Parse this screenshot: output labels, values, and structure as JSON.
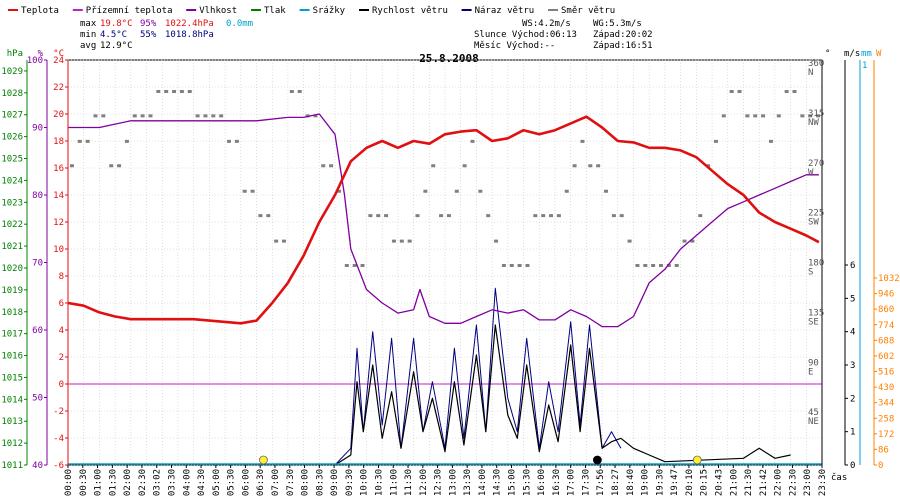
{
  "legend": [
    {
      "label": "Teplota",
      "color": "#e01010"
    },
    {
      "label": "Přízemní teplota",
      "color": "#c020c0"
    },
    {
      "label": "Vlhkost",
      "color": "#8000a0"
    },
    {
      "label": "Tlak",
      "color": "#008000"
    },
    {
      "label": "Srážky",
      "color": "#00a0d0"
    },
    {
      "label": "Rychlost větru",
      "color": "#000000"
    },
    {
      "label": "Náraz větru",
      "color": "#000080"
    },
    {
      "label": "Směr větru",
      "color": "#808080"
    }
  ],
  "stats": {
    "max_label": "max",
    "max_temp": "19.8°C",
    "max_hum": "95%",
    "max_press": "1022.4hPa",
    "max_rain": "0.0mm",
    "min_label": "min",
    "min_temp": "4.5°C",
    "min_hum": "55%",
    "min_press": "1018.8hPa",
    "avg_label": "avg",
    "avg_temp": "12.9°C"
  },
  "wind_info": {
    "ws": "WS:4.2m/s",
    "wg": "WG:5.3m/s"
  },
  "sun_info": {
    "sun": "Slunce Východ:06:13",
    "sun_set": "Západ:20:02",
    "moon": "Měsíc  Východ:--",
    "moon_set": "Západ:16:51"
  },
  "date": "25.8.2008",
  "time_axis_label": "čas",
  "colors": {
    "temp": "#e01010",
    "humidity": "#8000a0",
    "pressure": "#008000",
    "rain": "#00a0d0",
    "wind": "#000000",
    "gust": "#000080",
    "winddir": "#808080",
    "solar": "#ff8000",
    "zero": "#c020c0"
  },
  "chart_data": {
    "type": "line",
    "title": "25.8.2008",
    "xlabel": "čas",
    "x_tick_labels": [
      "00:00",
      "00:30",
      "01:00",
      "01:30",
      "02:00",
      "02:30",
      "03:02",
      "03:30",
      "04:00",
      "04:30",
      "05:00",
      "05:30",
      "06:00",
      "06:30",
      "07:00",
      "07:30",
      "08:00",
      "08:30",
      "09:00",
      "09:30",
      "10:00",
      "10:30",
      "11:00",
      "11:30",
      "12:00",
      "12:30",
      "13:00",
      "13:30",
      "14:00",
      "14:30",
      "15:00",
      "15:30",
      "16:00",
      "16:30",
      "17:00",
      "17:30",
      "17:56",
      "18:27",
      "18:40",
      "19:00",
      "19:30",
      "19:47",
      "20:10",
      "20:15",
      "20:43",
      "21:00",
      "21:30",
      "21:42",
      "22:00",
      "22:30",
      "23:00",
      "23:30"
    ],
    "axes": {
      "pressure_hPa": {
        "label": "hPa",
        "ticks": [
          1011,
          1012,
          1013,
          1014,
          1015,
          1016,
          1017,
          1018,
          1019,
          1020,
          1021,
          1022,
          1023,
          1024,
          1025,
          1026,
          1027,
          1028,
          1029
        ]
      },
      "humidity_pct": {
        "label": "%",
        "ticks": [
          40,
          50,
          60,
          70,
          80,
          90,
          100
        ]
      },
      "temperature_C": {
        "label": "°C",
        "ticks": [
          -6,
          -4,
          -2,
          0,
          2,
          4,
          6,
          8,
          10,
          12,
          14,
          16,
          18,
          20,
          22,
          24
        ]
      },
      "wind_dir_deg": {
        "label": "°",
        "ticks": [
          {
            "v": 45,
            "n": "NE"
          },
          {
            "v": 90,
            "n": "E"
          },
          {
            "v": 135,
            "n": "SE"
          },
          {
            "v": 180,
            "n": "S"
          },
          {
            "v": 225,
            "n": "SW"
          },
          {
            "v": 270,
            "n": "W"
          },
          {
            "v": 315,
            "n": "NW"
          },
          {
            "v": 360,
            "n": "N"
          }
        ]
      },
      "wind_ms": {
        "label": "m/s",
        "ticks": [
          0,
          1,
          2,
          3,
          4,
          5,
          6
        ]
      },
      "rain_mm": {
        "label": "mm",
        "ticks": [
          1
        ]
      },
      "solar_W": {
        "label": "W",
        "ticks": [
          0,
          86,
          172,
          258,
          344,
          430,
          516,
          602,
          688,
          774,
          860,
          946,
          1032
        ]
      }
    },
    "temperature": {
      "h": [
        0,
        0.5,
        1,
        1.5,
        2,
        3,
        4,
        5,
        5.5,
        6,
        6.5,
        7,
        7.5,
        8,
        8.5,
        9,
        9.5,
        10,
        10.5,
        11,
        11.5,
        12,
        12.5,
        13,
        13.5,
        14,
        14.5,
        15,
        15.5,
        16,
        16.5,
        17,
        17.5,
        18,
        18.5,
        19,
        19.5,
        20,
        20.5,
        21,
        21.5,
        22,
        22.5,
        23,
        23.5,
        23.9
      ],
      "v": [
        6,
        5.8,
        5.3,
        5,
        4.8,
        4.8,
        4.8,
        4.6,
        4.5,
        4.7,
        6,
        7.5,
        9.5,
        12,
        14,
        16.5,
        17.5,
        18,
        17.5,
        18,
        17.8,
        18.5,
        18.7,
        18.8,
        18,
        18.2,
        18.8,
        18.5,
        18.8,
        19.3,
        19.8,
        19,
        18,
        17.9,
        17.5,
        17.5,
        17.3,
        16.8,
        15.8,
        14.8,
        14,
        12.7,
        12,
        11.5,
        11,
        10.5
      ]
    },
    "humidity": {
      "h": [
        0,
        1,
        1.5,
        2,
        3,
        4,
        5,
        6,
        7,
        7.5,
        8,
        8.5,
        8.8,
        9,
        9.5,
        10,
        10.5,
        11,
        11.2,
        11.5,
        12,
        12.5,
        13,
        13.5,
        14,
        14.5,
        15,
        15.5,
        16,
        16.5,
        17,
        17.5,
        18,
        18.5,
        19,
        19.5,
        20,
        20.5,
        21,
        21.5,
        22,
        22.5,
        23,
        23.5,
        23.9
      ],
      "v": [
        90,
        90,
        90.5,
        91,
        91,
        91,
        91,
        91,
        91.5,
        91.5,
        92,
        89,
        80,
        72,
        66,
        64,
        62.5,
        63,
        66,
        62,
        61,
        61,
        62,
        63,
        62.5,
        63,
        61.5,
        61.5,
        63,
        62,
        60.5,
        60.5,
        62,
        67,
        69,
        72,
        74,
        76,
        78,
        79,
        80,
        81,
        82,
        83,
        83
      ]
    },
    "wind_dir": [
      270,
      292,
      292,
      315,
      315,
      270,
      270,
      292,
      315,
      315,
      315,
      337,
      337,
      337,
      337,
      337,
      315,
      315,
      315,
      315,
      292,
      292,
      247,
      247,
      225,
      225,
      202,
      202,
      337,
      337,
      315,
      315,
      270,
      270,
      247,
      180,
      180,
      180,
      225,
      225,
      225,
      202,
      202,
      202,
      225,
      247,
      270,
      225,
      225,
      247,
      270,
      292,
      247,
      225,
      202,
      180,
      180,
      180,
      180,
      225,
      225,
      225,
      225,
      247,
      270,
      292,
      270,
      270,
      247,
      225,
      225,
      202,
      180,
      180,
      180,
      180,
      180,
      180,
      202,
      202,
      225,
      270,
      292,
      315,
      337,
      337,
      315,
      315,
      315,
      292,
      315,
      337,
      337,
      315,
      315,
      315
    ],
    "wind_speed": {
      "h": [
        8.5,
        9,
        9.2,
        9.4,
        9.7,
        10,
        10.3,
        10.6,
        11,
        11.3,
        11.6,
        12,
        12.3,
        12.6,
        13,
        13.3,
        13.6,
        14,
        14.3,
        14.6,
        15,
        15.3,
        15.6,
        16,
        16.3,
        16.6,
        17,
        17.3,
        17.6,
        18,
        18.5,
        19,
        21.5,
        22,
        22.5,
        23
      ],
      "v": [
        0,
        0.3,
        2.5,
        1,
        3,
        0.8,
        2.2,
        0.5,
        2.8,
        1,
        2,
        0.4,
        2.5,
        0.6,
        3.3,
        1,
        4.2,
        1.5,
        0.8,
        3,
        0.4,
        1.8,
        0.7,
        3.6,
        1,
        3.5,
        0.5,
        0.7,
        0.8,
        0.5,
        0.3,
        0.1,
        0.2,
        0.5,
        0.2,
        0.3
      ]
    },
    "wind_gust": {
      "h": [
        8.5,
        9,
        9.2,
        9.4,
        9.7,
        10,
        10.3,
        10.6,
        11,
        11.3,
        11.6,
        12,
        12.3,
        12.6,
        13,
        13.3,
        13.6,
        14,
        14.3,
        14.6,
        15,
        15.3,
        15.6,
        16,
        16.3,
        16.6,
        17,
        17.3,
        17.6
      ],
      "v": [
        0,
        0.5,
        3.5,
        1,
        4,
        1.2,
        3.8,
        0.5,
        3.8,
        1,
        2.5,
        0.5,
        3.5,
        0.8,
        4.2,
        1,
        5.3,
        2,
        1,
        3.8,
        0.5,
        2.5,
        1,
        4.3,
        1.2,
        4.2,
        0.5,
        1,
        0.5
      ]
    },
    "pressure_line_color": "#008000",
    "zero_line": 0
  }
}
